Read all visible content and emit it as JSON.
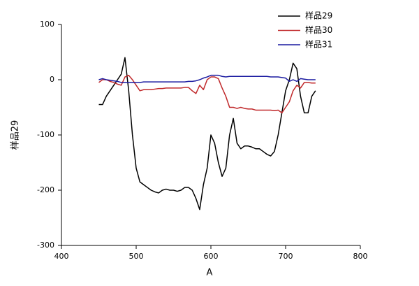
{
  "chart_data": {
    "type": "line",
    "xlabel": "A",
    "ylabel": "样品29",
    "xlim": [
      400,
      800
    ],
    "xticks": [
      400,
      500,
      600,
      700,
      800
    ],
    "ylim": [
      -300,
      100
    ],
    "yticks": [
      -300,
      -200,
      -100,
      0,
      100
    ],
    "legend": "upper right",
    "x": [
      450,
      455,
      460,
      465,
      470,
      475,
      480,
      485,
      490,
      495,
      500,
      505,
      510,
      515,
      520,
      525,
      530,
      535,
      540,
      545,
      550,
      555,
      560,
      565,
      570,
      575,
      580,
      585,
      590,
      595,
      600,
      605,
      610,
      615,
      620,
      625,
      630,
      635,
      640,
      645,
      650,
      655,
      660,
      665,
      670,
      675,
      680,
      685,
      690,
      695,
      700,
      705,
      710,
      715,
      720,
      725,
      730,
      735,
      740
    ],
    "series": [
      {
        "name": "样品29",
        "color": "#000000",
        "values": [
          -45,
          -45,
          -30,
          -20,
          -10,
          0,
          10,
          40,
          -20,
          -100,
          -160,
          -185,
          -190,
          -195,
          -200,
          -203,
          -205,
          -200,
          -198,
          -200,
          -200,
          -202,
          -200,
          -195,
          -195,
          -200,
          -215,
          -235,
          -190,
          -160,
          -100,
          -115,
          -150,
          -175,
          -160,
          -100,
          -70,
          -115,
          -125,
          -120,
          -120,
          -122,
          -125,
          -125,
          -130,
          -135,
          -138,
          -130,
          -100,
          -60,
          -20,
          0,
          30,
          20,
          -30,
          -60,
          -60,
          -30,
          -20
        ]
      },
      {
        "name": "样品30",
        "color": "#c0282a",
        "values": [
          -5,
          0,
          0,
          -3,
          -5,
          -8,
          -10,
          5,
          8,
          0,
          -10,
          -20,
          -18,
          -18,
          -18,
          -17,
          -16,
          -16,
          -15,
          -15,
          -15,
          -15,
          -15,
          -14,
          -14,
          -20,
          -25,
          -10,
          -18,
          0,
          5,
          5,
          2,
          -15,
          -30,
          -50,
          -50,
          -52,
          -50,
          -52,
          -53,
          -53,
          -55,
          -55,
          -55,
          -55,
          -55,
          -56,
          -55,
          -60,
          -50,
          -40,
          -20,
          -10,
          -15,
          -5,
          -5,
          -6,
          -6
        ]
      },
      {
        "name": "样品31",
        "color": "#1a1aa0",
        "values": [
          0,
          2,
          0,
          -1,
          -2,
          -3,
          -5,
          -5,
          -5,
          -5,
          -5,
          -5,
          -4,
          -4,
          -4,
          -4,
          -4,
          -4,
          -4,
          -4,
          -4,
          -4,
          -4,
          -4,
          -3,
          -3,
          -2,
          0,
          3,
          5,
          8,
          8,
          8,
          6,
          5,
          6,
          6,
          6,
          6,
          6,
          6,
          6,
          6,
          6,
          6,
          6,
          5,
          5,
          5,
          4,
          3,
          -3,
          0,
          -3,
          2,
          1,
          0,
          0,
          0
        ]
      }
    ]
  }
}
